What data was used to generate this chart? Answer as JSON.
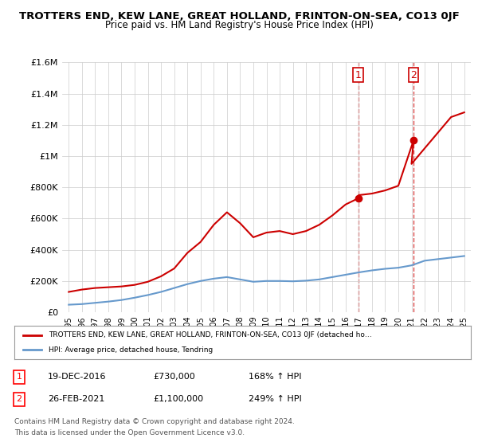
{
  "title": "TROTTERS END, KEW LANE, GREAT HOLLAND, FRINTON-ON-SEA, CO13 0JF",
  "subtitle": "Price paid vs. HM Land Registry's House Price Index (HPI)",
  "legend_line1": "TROTTERS END, KEW LANE, GREAT HOLLAND, FRINTON-ON-SEA, CO13 0JF (detached ho…",
  "legend_line2": "HPI: Average price, detached house, Tendring",
  "footer1": "Contains HM Land Registry data © Crown copyright and database right 2024.",
  "footer2": "This data is licensed under the Open Government Licence v3.0.",
  "sale1_label": "1",
  "sale1_date": "19-DEC-2016",
  "sale1_price": "£730,000",
  "sale1_hpi": "168% ↑ HPI",
  "sale2_label": "2",
  "sale2_date": "26-FEB-2021",
  "sale2_price": "£1,100,000",
  "sale2_hpi": "249% ↑ HPI",
  "red_line_color": "#cc0000",
  "blue_line_color": "#6699cc",
  "ylim": [
    0,
    1600000
  ],
  "yticks": [
    0,
    200000,
    400000,
    600000,
    800000,
    1000000,
    1200000,
    1400000,
    1600000
  ],
  "ytick_labels": [
    "£0",
    "£200K",
    "£400K",
    "£600K",
    "£800K",
    "£1M",
    "£1.2M",
    "£1.4M",
    "£1.6M"
  ],
  "xlim_start": 1994.5,
  "xlim_end": 2025.5,
  "sale1_x": 2016.97,
  "sale1_y": 730000,
  "sale2_x": 2021.15,
  "sale2_y": 1100000,
  "red_x": [
    1995,
    1996,
    1997,
    1998,
    1999,
    2000,
    2001,
    2002,
    2003,
    2004,
    2005,
    2006,
    2007,
    2008,
    2009,
    2010,
    2011,
    2012,
    2013,
    2014,
    2015,
    2016,
    2016.97,
    2017,
    2018,
    2019,
    2020,
    2021.15,
    2021,
    2022,
    2023,
    2024,
    2025
  ],
  "red_y": [
    130000,
    145000,
    155000,
    160000,
    165000,
    175000,
    195000,
    230000,
    280000,
    380000,
    450000,
    560000,
    640000,
    570000,
    480000,
    510000,
    520000,
    500000,
    520000,
    560000,
    620000,
    690000,
    730000,
    750000,
    760000,
    780000,
    810000,
    1100000,
    950000,
    1050000,
    1150000,
    1250000,
    1280000
  ],
  "blue_x": [
    1995,
    1996,
    1997,
    1998,
    1999,
    2000,
    2001,
    2002,
    2003,
    2004,
    2005,
    2006,
    2007,
    2008,
    2009,
    2010,
    2011,
    2012,
    2013,
    2014,
    2015,
    2016,
    2017,
    2018,
    2019,
    2020,
    2021,
    2022,
    2023,
    2024,
    2025
  ],
  "blue_y": [
    48000,
    52000,
    60000,
    68000,
    78000,
    93000,
    110000,
    130000,
    155000,
    180000,
    200000,
    215000,
    225000,
    210000,
    195000,
    200000,
    200000,
    198000,
    202000,
    210000,
    225000,
    240000,
    255000,
    268000,
    278000,
    285000,
    300000,
    330000,
    340000,
    350000,
    360000
  ],
  "background_color": "#ffffff",
  "grid_color": "#cccccc",
  "xticks": [
    1995,
    1996,
    1997,
    1998,
    1999,
    2000,
    2001,
    2002,
    2003,
    2004,
    2005,
    2006,
    2007,
    2008,
    2009,
    2010,
    2011,
    2012,
    2013,
    2014,
    2015,
    2016,
    2017,
    2018,
    2019,
    2020,
    2021,
    2022,
    2023,
    2024,
    2025
  ]
}
